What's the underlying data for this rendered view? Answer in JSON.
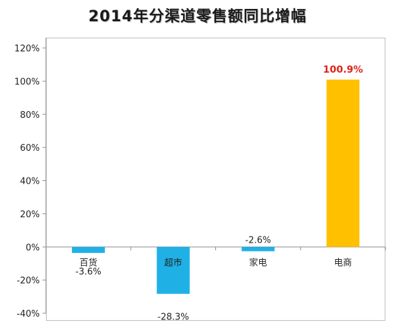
{
  "chart_data": {
    "type": "bar",
    "title": "2014年分渠道零售额同比增幅",
    "categories": [
      "百货",
      "超市",
      "家电",
      "电商"
    ],
    "values": [
      -3.6,
      -28.3,
      -2.6,
      100.9
    ],
    "data_labels": [
      "-3.6%",
      "-28.3%",
      "-2.6%",
      "100.9%"
    ],
    "bar_colors": [
      "#1fb1e6",
      "#1fb1e6",
      "#1fb1e6",
      "#ffc000"
    ],
    "highlight_label_color": "#e0231a",
    "ylim": [
      -40,
      120
    ],
    "yticks": [
      120,
      100,
      80,
      60,
      40,
      20,
      0,
      -20,
      -40
    ],
    "ytick_labels": [
      "120%",
      "100%",
      "80%",
      "60%",
      "40%",
      "20%",
      "0%",
      "-20%",
      "-40%"
    ],
    "xlabel": "",
    "ylabel": "",
    "grid": false,
    "legend": "none"
  }
}
